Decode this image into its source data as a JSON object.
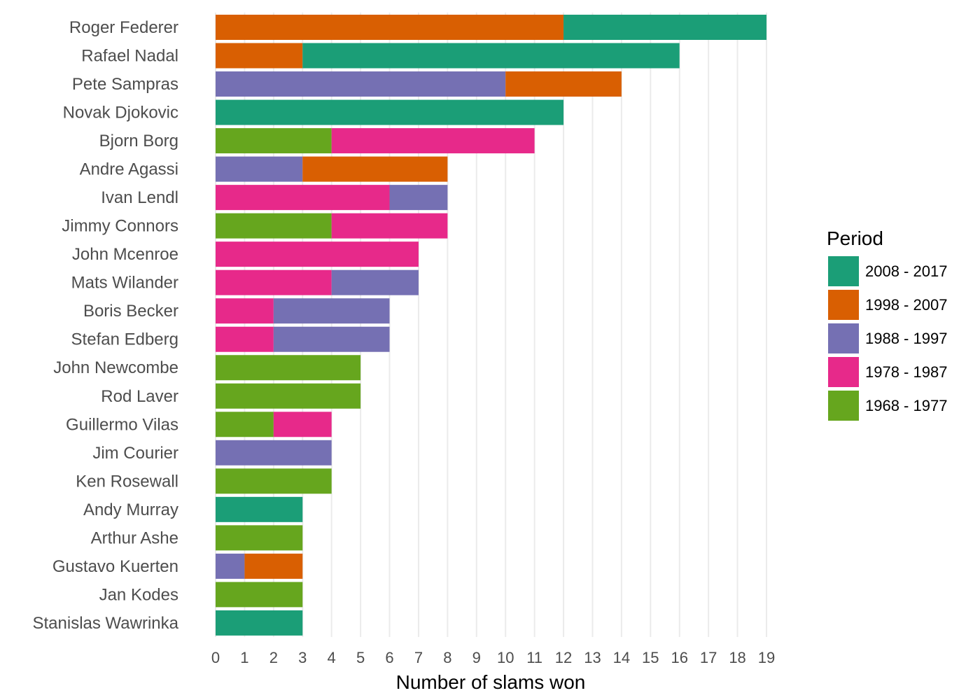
{
  "chart_data": {
    "type": "bar",
    "orientation": "horizontal",
    "stacked": true,
    "title": "",
    "xlabel": "Number of slams won",
    "ylabel": "",
    "xlim": [
      0,
      19
    ],
    "x_ticks": [
      0,
      1,
      2,
      3,
      4,
      5,
      6,
      7,
      8,
      9,
      10,
      11,
      12,
      13,
      14,
      15,
      16,
      17,
      18,
      19
    ],
    "grid": "vertical",
    "legend": {
      "title": "Period",
      "placement": "right",
      "entries": [
        {
          "key": "p2008",
          "label": "2008 - 2017",
          "color": "#1b9e77"
        },
        {
          "key": "p1998",
          "label": "1998 - 2007",
          "color": "#d95f02"
        },
        {
          "key": "p1988",
          "label": "1988 - 1997",
          "color": "#7570b3"
        },
        {
          "key": "p1978",
          "label": "1978 - 1987",
          "color": "#e7298a"
        },
        {
          "key": "p1968",
          "label": "1968 - 1977",
          "color": "#66a61e"
        }
      ]
    },
    "stack_order": [
      "p1968",
      "p1978",
      "p1988",
      "p1998",
      "p2008"
    ],
    "categories": [
      "Roger Federer",
      "Rafael Nadal",
      "Pete Sampras",
      "Novak Djokovic",
      "Bjorn Borg",
      "Andre Agassi",
      "Ivan Lendl",
      "Jimmy Connors",
      "John Mcenroe",
      "Mats Wilander",
      "Boris Becker",
      "Stefan Edberg",
      "John Newcombe",
      "Rod Laver",
      "Guillermo Vilas",
      "Jim Courier",
      "Ken Rosewall",
      "Andy Murray",
      "Arthur Ashe",
      "Gustavo Kuerten",
      "Jan Kodes",
      "Stanislas Wawrinka"
    ],
    "series": [
      {
        "key": "p2008",
        "name": "2008 - 2017",
        "values": [
          7,
          13,
          0,
          12,
          0,
          0,
          0,
          0,
          0,
          0,
          0,
          0,
          0,
          0,
          0,
          0,
          0,
          3,
          0,
          0,
          0,
          3
        ]
      },
      {
        "key": "p1998",
        "name": "1998 - 2007",
        "values": [
          12,
          3,
          4,
          0,
          0,
          5,
          0,
          0,
          0,
          0,
          0,
          0,
          0,
          0,
          0,
          0,
          0,
          0,
          0,
          2,
          0,
          0
        ]
      },
      {
        "key": "p1988",
        "name": "1988 - 1997",
        "values": [
          0,
          0,
          10,
          0,
          0,
          3,
          2,
          0,
          0,
          3,
          4,
          4,
          0,
          0,
          0,
          4,
          0,
          0,
          0,
          1,
          0,
          0
        ]
      },
      {
        "key": "p1978",
        "name": "1978 - 1987",
        "values": [
          0,
          0,
          0,
          0,
          7,
          0,
          6,
          4,
          7,
          4,
          2,
          2,
          0,
          0,
          2,
          0,
          0,
          0,
          0,
          0,
          0,
          0
        ]
      },
      {
        "key": "p1968",
        "name": "1968 - 1977",
        "values": [
          0,
          0,
          0,
          0,
          4,
          0,
          0,
          4,
          0,
          0,
          0,
          0,
          5,
          5,
          2,
          0,
          4,
          0,
          3,
          0,
          3,
          0
        ]
      }
    ]
  }
}
